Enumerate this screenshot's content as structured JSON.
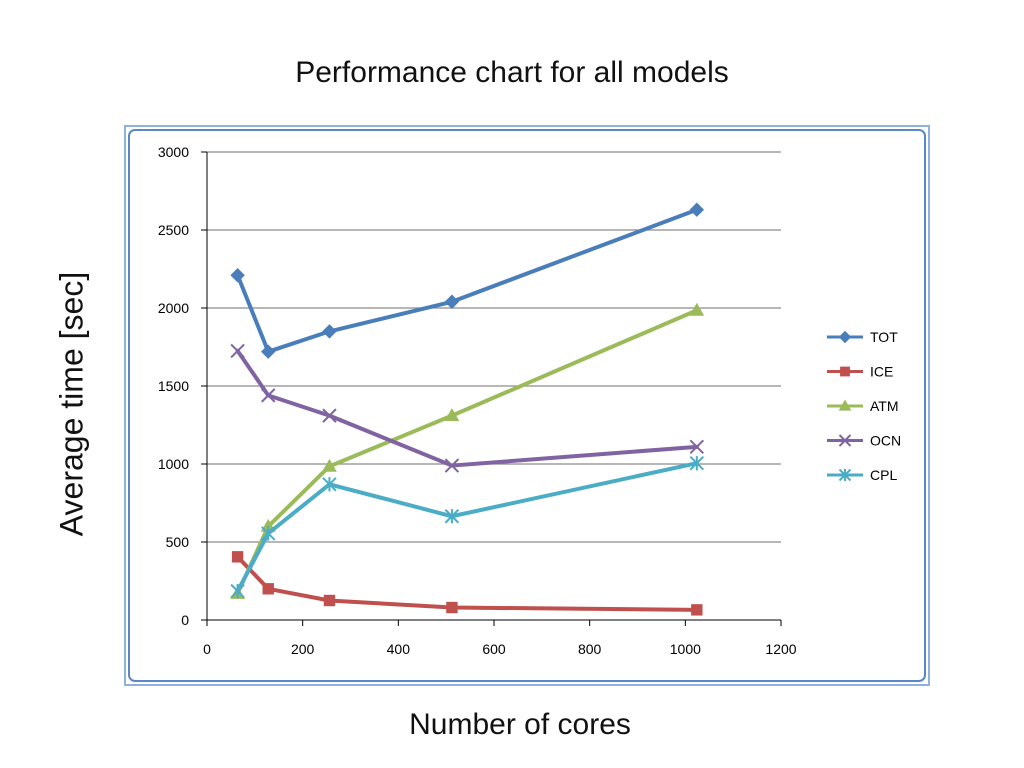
{
  "slide": {
    "title": "Performance chart for all models",
    "ylabel": "Average time [sec]",
    "xlabel": "Number of cores"
  },
  "colors": {
    "frame_border": "#8fb1e0",
    "frame_border_dark": "#5b86c8",
    "gridline": "#8c8c8c",
    "axis": "#000000"
  },
  "chart_data": {
    "type": "line",
    "title": "Performance chart for all models",
    "xlabel": "Number of cores",
    "ylabel": "Average time [sec]",
    "xlim": [
      0,
      1200
    ],
    "ylim": [
      0,
      3000
    ],
    "x_ticks": [
      0,
      200,
      400,
      600,
      800,
      1000,
      1200
    ],
    "y_ticks": [
      0,
      500,
      1000,
      1500,
      2000,
      2500,
      3000
    ],
    "grid": "horizontal",
    "legend_position": "right",
    "x": [
      64,
      128,
      256,
      512,
      1024
    ],
    "series": [
      {
        "name": "TOT",
        "color": "#4a7ebb",
        "marker": "diamond",
        "values": [
          2210,
          1720,
          1850,
          2040,
          2630
        ]
      },
      {
        "name": "ICE",
        "color": "#c0504d",
        "marker": "square",
        "values": [
          405,
          200,
          125,
          80,
          65
        ]
      },
      {
        "name": "ATM",
        "color": "#9bbb59",
        "marker": "triangle",
        "values": [
          170,
          600,
          985,
          1310,
          1985
        ]
      },
      {
        "name": "OCN",
        "color": "#8064a2",
        "marker": "x",
        "values": [
          1725,
          1440,
          1310,
          990,
          1110
        ]
      },
      {
        "name": "CPL",
        "color": "#4bacc6",
        "marker": "star",
        "values": [
          185,
          555,
          870,
          665,
          1005
        ]
      }
    ]
  }
}
